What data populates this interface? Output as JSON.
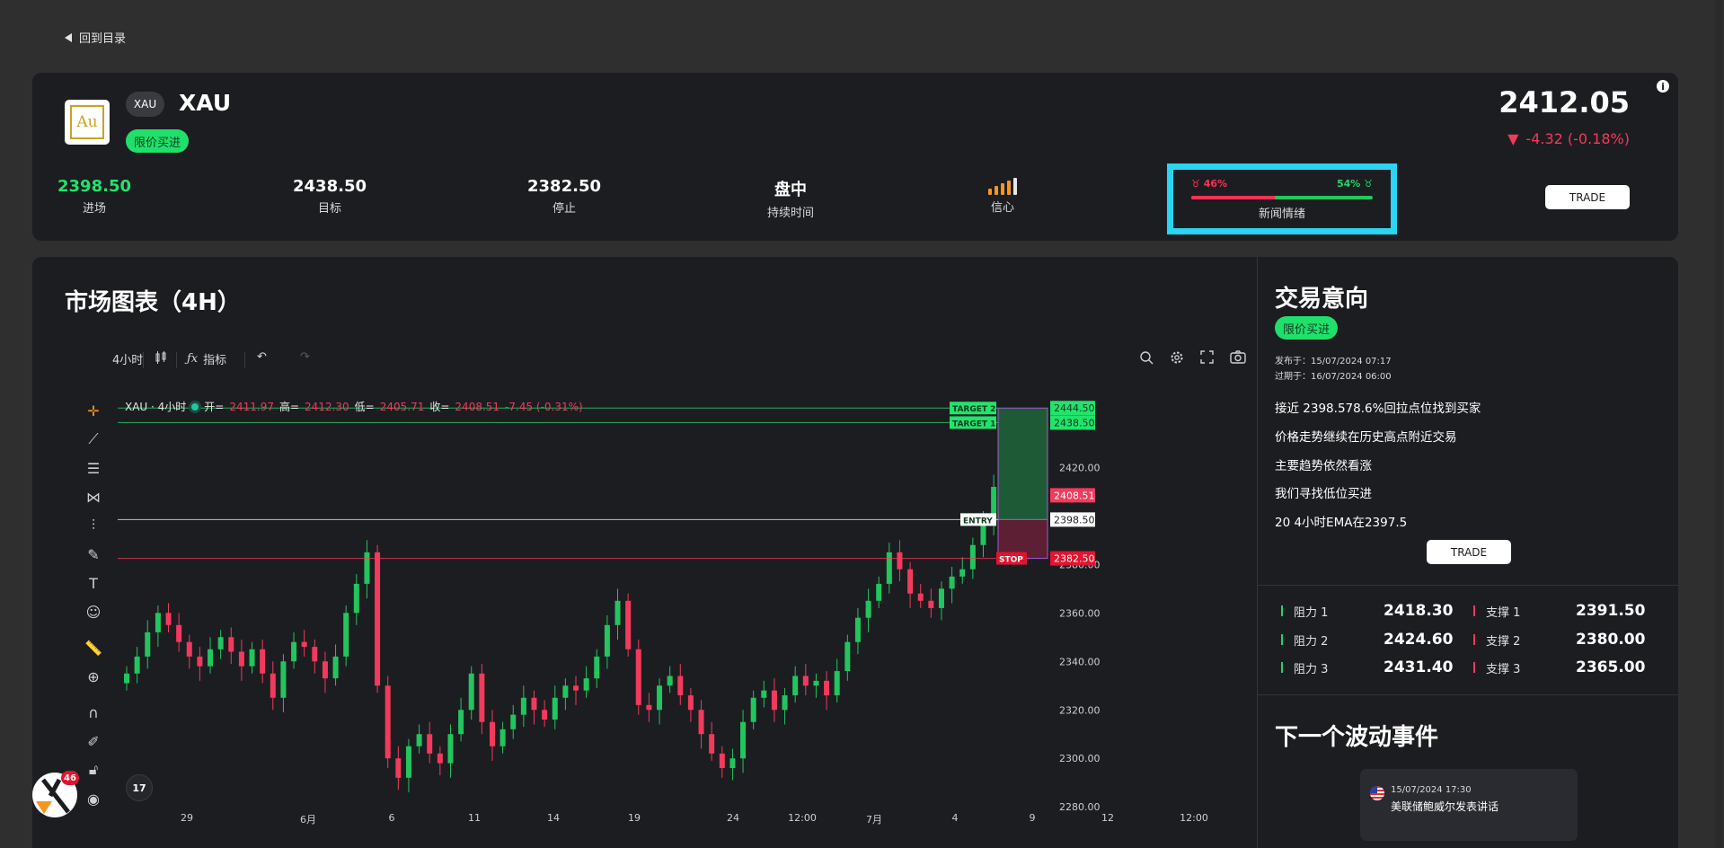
{
  "nav": {
    "back_label": "回到目录"
  },
  "instrument": {
    "logo_text": "Au",
    "ticker": "XAU",
    "name": "XAU",
    "signal": "限价买进",
    "price": "2412.05",
    "change": "-4.32 (-0.18%)",
    "change_color": "#f23a5c"
  },
  "stats": {
    "entry": {
      "value": "2398.50",
      "label": "进场"
    },
    "target": {
      "value": "2438.50",
      "label": "目标"
    },
    "stop": {
      "value": "2382.50",
      "label": "停止"
    },
    "duration": {
      "value": "盘中",
      "label": "持续时间"
    },
    "confidence": {
      "label": "信心",
      "level": 4,
      "max": 5
    }
  },
  "sentiment": {
    "bearish": "46%",
    "bullish": "54%",
    "bearish_value": 46,
    "label": "新闻情绪",
    "highlight_color": "#2bd4f2"
  },
  "trade_label": "TRADE",
  "chart_panel": {
    "title": "市场图表（4H）",
    "toolbar": {
      "interval": "4小时",
      "indicators": "指标"
    },
    "legend": {
      "symbol": "XAU · 4小时",
      "open_label": "开=",
      "open": "2411.97",
      "high_label": "高=",
      "high": "2412.30",
      "low_label": "低=",
      "low": "2405.71",
      "close_label": "收=",
      "close": "2408.51",
      "change": "-7.45 (-0.31%)"
    },
    "labels": {
      "target2": "TARGET 2",
      "target1": "TARGET 1",
      "entry": "ENTRY",
      "stop": "STOP"
    },
    "tv_logo": "17"
  },
  "chart_data": {
    "type": "candlestick",
    "y_ticks": [
      "2420.00",
      "2380.00",
      "2360.00",
      "2340.00",
      "2320.00",
      "2300.00",
      "2280.00"
    ],
    "ylim": [
      2276,
      2452
    ],
    "x_ticks": [
      "29",
      "6月",
      "6",
      "11",
      "14",
      "19",
      "24",
      "12:00",
      "7月",
      "4",
      "9",
      "12",
      "12:00"
    ],
    "levels": [
      {
        "name": "TARGET 2",
        "value": 2444.5,
        "label": "2444.50",
        "color": "#22d46b"
      },
      {
        "name": "TARGET 1",
        "value": 2438.5,
        "label": "2438.50",
        "color": "#22d46b"
      },
      {
        "name": "ENTRY",
        "value": 2398.5,
        "label": "2398.50",
        "color": "#e6e6e6"
      },
      {
        "name": "STOP",
        "value": 2382.5,
        "label": "2382.50",
        "color": "#f23a5c"
      }
    ],
    "last_price": {
      "value": 2408.51,
      "label": "2408.51"
    },
    "close_path": [
      2335,
      2342,
      2352,
      2360,
      2355,
      2348,
      2342,
      2338,
      2345,
      2350,
      2344,
      2338,
      2345,
      2335,
      2325,
      2340,
      2348,
      2346,
      2340,
      2333,
      2342,
      2360,
      2372,
      2385,
      2330,
      2300,
      2292,
      2305,
      2310,
      2302,
      2298,
      2310,
      2320,
      2335,
      2315,
      2305,
      2312,
      2318,
      2325,
      2320,
      2316,
      2325,
      2330,
      2328,
      2333,
      2342,
      2355,
      2365,
      2345,
      2322,
      2320,
      2330,
      2334,
      2326,
      2320,
      2310,
      2302,
      2296,
      2300,
      2315,
      2325,
      2328,
      2320,
      2326,
      2334,
      2330,
      2332,
      2326,
      2336,
      2348,
      2358,
      2365,
      2372,
      2385,
      2378,
      2368,
      2365,
      2362,
      2370,
      2375,
      2378,
      2388,
      2398,
      2412,
      2418,
      2405,
      2408
    ]
  },
  "intent": {
    "title": "交易意向",
    "signal": "限价买进",
    "published": "发布于：15/07/2024 07:17",
    "expires": "过期于：16/07/2024 06:00",
    "points": [
      "接近 2398.578.6%回拉点位找到买家",
      "价格走势继续在历史高点附近交易",
      "主要趋势依然看涨",
      "我们寻找低位买进",
      "20 4小时EMA在2397.5"
    ]
  },
  "levels": {
    "resistance": [
      {
        "name": "阻力 1",
        "value": "2418.30"
      },
      {
        "name": "阻力 2",
        "value": "2424.60"
      },
      {
        "name": "阻力 3",
        "value": "2431.40"
      }
    ],
    "support": [
      {
        "name": "支撑 1",
        "value": "2391.50"
      },
      {
        "name": "支撑 2",
        "value": "2380.00"
      },
      {
        "name": "支撑 3",
        "value": "2365.00"
      }
    ]
  },
  "events": {
    "title": "下一个波动事件",
    "items": [
      {
        "time": "15/07/2024 17:30",
        "desc": "美联储鲍威尔发表讲话"
      }
    ]
  },
  "notification_count": "46"
}
